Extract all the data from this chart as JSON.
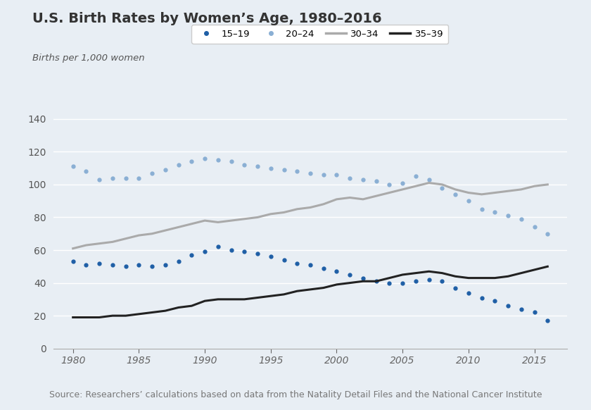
{
  "title": "U.S. Birth Rates by Women’s Age, 1980–2016",
  "ylabel": "Births per 1,000 women",
  "source": "Source: Researchers’ calculations based on data from the Natality Detail Files and the National Cancer Institute",
  "background_color": "#e8eef4",
  "plot_bg_color": "#dce6f0",
  "ylim": [
    0,
    145
  ],
  "yticks": [
    0,
    20,
    40,
    60,
    80,
    100,
    120,
    140
  ],
  "xticks": [
    1980,
    1985,
    1990,
    1995,
    2000,
    2005,
    2010,
    2015
  ],
  "xlim": [
    1978.5,
    2017.5
  ],
  "series": {
    "15-19": {
      "color": "#1f5fa6",
      "style": "dotted",
      "linewidth": 2.0,
      "markersize": 3.5,
      "years": [
        1980,
        1981,
        1982,
        1983,
        1984,
        1985,
        1986,
        1987,
        1988,
        1989,
        1990,
        1991,
        1992,
        1993,
        1994,
        1995,
        1996,
        1997,
        1998,
        1999,
        2000,
        2001,
        2002,
        2003,
        2004,
        2005,
        2006,
        2007,
        2008,
        2009,
        2010,
        2011,
        2012,
        2013,
        2014,
        2015,
        2016
      ],
      "values": [
        53,
        51,
        52,
        51,
        50,
        51,
        50,
        51,
        53,
        57,
        59,
        62,
        60,
        59,
        58,
        56,
        54,
        52,
        51,
        49,
        47,
        45,
        43,
        41,
        40,
        40,
        41,
        42,
        41,
        37,
        34,
        31,
        29,
        26,
        24,
        22,
        17
      ]
    },
    "20-24": {
      "color": "#8aafd4",
      "style": "dotted",
      "linewidth": 2.0,
      "markersize": 3.5,
      "years": [
        1980,
        1981,
        1982,
        1983,
        1984,
        1985,
        1986,
        1987,
        1988,
        1989,
        1990,
        1991,
        1992,
        1993,
        1994,
        1995,
        1996,
        1997,
        1998,
        1999,
        2000,
        2001,
        2002,
        2003,
        2004,
        2005,
        2006,
        2007,
        2008,
        2009,
        2010,
        2011,
        2012,
        2013,
        2014,
        2015,
        2016
      ],
      "values": [
        111,
        108,
        103,
        104,
        104,
        104,
        107,
        109,
        112,
        114,
        116,
        115,
        114,
        112,
        111,
        110,
        109,
        108,
        107,
        106,
        106,
        104,
        103,
        102,
        100,
        101,
        105,
        103,
        98,
        94,
        90,
        85,
        83,
        81,
        79,
        74,
        70
      ]
    },
    "30-34": {
      "color": "#aaaaaa",
      "style": "solid",
      "linewidth": 2.2,
      "markersize": 0,
      "years": [
        1980,
        1981,
        1982,
        1983,
        1984,
        1985,
        1986,
        1987,
        1988,
        1989,
        1990,
        1991,
        1992,
        1993,
        1994,
        1995,
        1996,
        1997,
        1998,
        1999,
        2000,
        2001,
        2002,
        2003,
        2004,
        2005,
        2006,
        2007,
        2008,
        2009,
        2010,
        2011,
        2012,
        2013,
        2014,
        2015,
        2016
      ],
      "values": [
        61,
        63,
        64,
        65,
        67,
        69,
        70,
        72,
        74,
        76,
        78,
        77,
        78,
        79,
        80,
        82,
        83,
        85,
        86,
        88,
        91,
        92,
        91,
        93,
        95,
        97,
        99,
        101,
        100,
        97,
        95,
        94,
        95,
        96,
        97,
        99,
        100
      ]
    },
    "35-39": {
      "color": "#222222",
      "style": "solid",
      "linewidth": 2.2,
      "markersize": 0,
      "years": [
        1980,
        1981,
        1982,
        1983,
        1984,
        1985,
        1986,
        1987,
        1988,
        1989,
        1990,
        1991,
        1992,
        1993,
        1994,
        1995,
        1996,
        1997,
        1998,
        1999,
        2000,
        2001,
        2002,
        2003,
        2004,
        2005,
        2006,
        2007,
        2008,
        2009,
        2010,
        2011,
        2012,
        2013,
        2014,
        2015,
        2016
      ],
      "values": [
        19,
        19,
        19,
        20,
        20,
        21,
        22,
        23,
        25,
        26,
        29,
        30,
        30,
        30,
        31,
        32,
        33,
        35,
        36,
        37,
        39,
        40,
        41,
        41,
        43,
        45,
        46,
        47,
        46,
        44,
        43,
        43,
        43,
        44,
        46,
        48,
        50
      ]
    }
  },
  "legend_labels": [
    "15–19",
    "20–24",
    "30–34",
    "35–39"
  ],
  "title_fontsize": 14,
  "tick_fontsize": 10,
  "source_fontsize": 9
}
